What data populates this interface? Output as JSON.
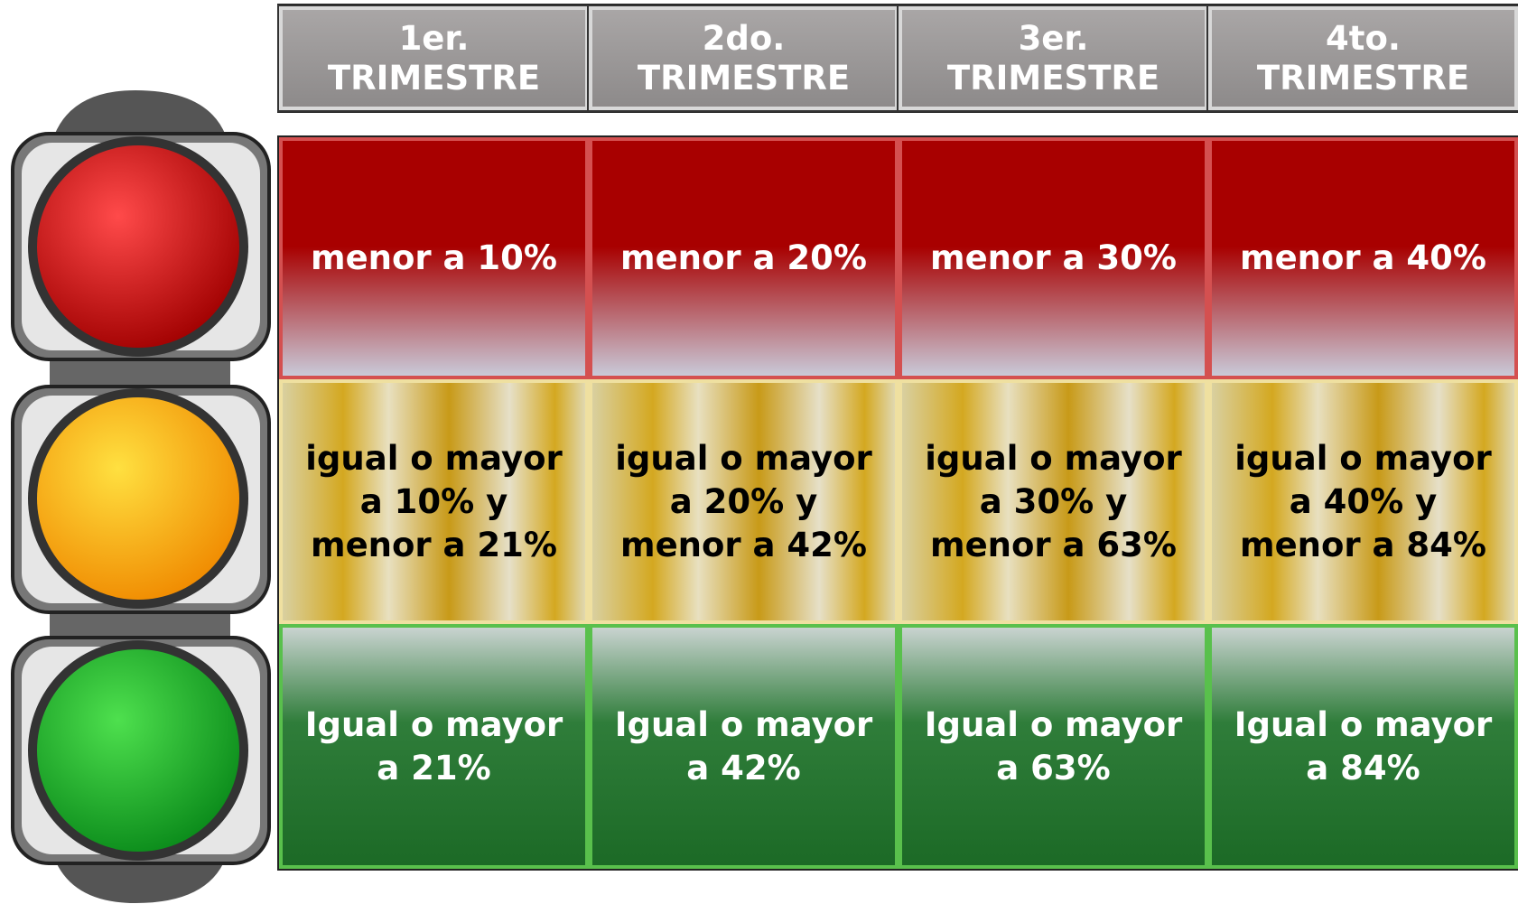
{
  "headers": [
    [
      "1er.",
      "TRIMESTRE"
    ],
    [
      "2do.",
      "TRIMESTRE"
    ],
    [
      "3er.",
      "TRIMESTRE"
    ],
    [
      "4to.",
      "TRIMESTRE"
    ]
  ],
  "rows": [
    [
      [
        "menor a 10%"
      ],
      [
        "menor a 20%"
      ],
      [
        "menor a 30%"
      ],
      [
        "menor a 40%"
      ]
    ],
    [
      [
        "igual o mayor",
        "a 10% y",
        "menor a 21%"
      ],
      [
        "igual o mayor",
        "a 20% y",
        "menor a 42%"
      ],
      [
        "igual o mayor",
        "a 30% y",
        "menor a 63%"
      ],
      [
        "igual o mayor",
        "a 40% y",
        "menor a 84%"
      ]
    ],
    [
      [
        "Igual o mayor",
        "a 21%"
      ],
      [
        "Igual o mayor",
        "a 42%"
      ],
      [
        "Igual o mayor",
        "a 63%"
      ],
      [
        "Igual o mayor",
        "a 84%"
      ]
    ]
  ]
}
